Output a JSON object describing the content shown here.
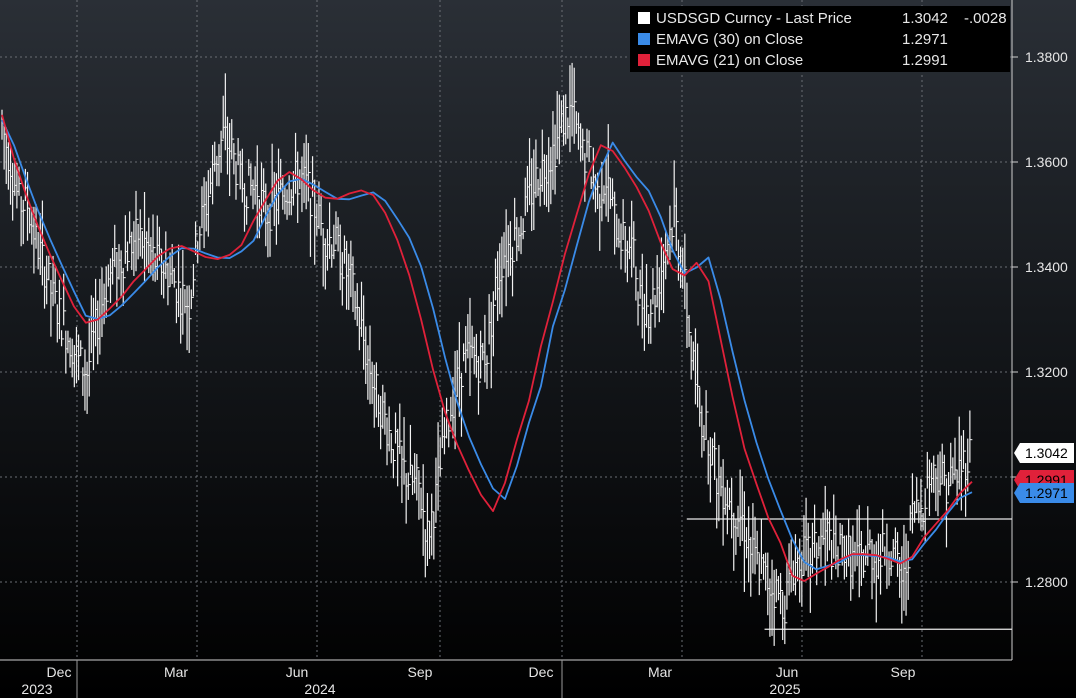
{
  "chart_data": {
    "type": "line",
    "title": "",
    "xlabel": "",
    "ylabel": "",
    "ylim": [
      1.2655,
      1.3905
    ],
    "yticks": [
      "1.2800",
      "1.3000",
      "1.3200",
      "1.3400",
      "1.3600",
      "1.3800"
    ],
    "y_major_values": [
      1.28,
      1.3,
      1.32,
      1.34,
      1.36,
      1.38
    ],
    "months": [
      "Dec",
      "Mar",
      "Jun",
      "Sep",
      "Dec",
      "Mar",
      "Jun",
      "Sep"
    ],
    "years": [
      "2023",
      "2024",
      "2025"
    ],
    "legend_position": "top-right",
    "grid": true,
    "series": [
      {
        "name": "USDSGD Curncy - Last Price",
        "style": "price-bars",
        "last": "1.3042",
        "change": "-.0028",
        "label": "1.3042",
        "color": "#ffffff",
        "label_bg": "#ffffff",
        "label_color": "#000000",
        "values": [
          1.367,
          1.36,
          1.352,
          1.352,
          1.345,
          1.34,
          1.334,
          1.33,
          1.326,
          1.322,
          1.32,
          1.328,
          1.335,
          1.34,
          1.341,
          1.344,
          1.346,
          1.344,
          1.341,
          1.34,
          1.338,
          1.335,
          1.333,
          1.346,
          1.352,
          1.36,
          1.365,
          1.362,
          1.356,
          1.355,
          1.355,
          1.35,
          1.352,
          1.354,
          1.356,
          1.357,
          1.355,
          1.35,
          1.346,
          1.345,
          1.341,
          1.337,
          1.33,
          1.322,
          1.316,
          1.311,
          1.306,
          1.302,
          1.299,
          1.298,
          1.289,
          1.296,
          1.307,
          1.315,
          1.321,
          1.323,
          1.322,
          1.324,
          1.336,
          1.343,
          1.345,
          1.348,
          1.353,
          1.358,
          1.36,
          1.363,
          1.368,
          1.37,
          1.362,
          1.36,
          1.354,
          1.357,
          1.349,
          1.345,
          1.344,
          1.334,
          1.332,
          1.336,
          1.344,
          1.35,
          1.34,
          1.324,
          1.312,
          1.308,
          1.3,
          1.297,
          1.294,
          1.292,
          1.286,
          1.283,
          1.28,
          1.278,
          1.276,
          1.283,
          1.285,
          1.285,
          1.287,
          1.289,
          1.284,
          1.287,
          1.284,
          1.284,
          1.286,
          1.284,
          1.287,
          1.284,
          1.28,
          1.293,
          1.294,
          1.3,
          1.301,
          1.299,
          1.3,
          1.303,
          1.305
        ]
      },
      {
        "name": "EMAVG (30)  on Close",
        "label": "1.2971",
        "color": "#3a8be8",
        "label_bg": "#3a8be8",
        "label_color": "#000000",
        "values": [
          1.368,
          1.3632,
          1.3568,
          1.3508,
          1.3454,
          1.3403,
          1.3354,
          1.3307,
          1.3301,
          1.3308,
          1.3327,
          1.335,
          1.3374,
          1.3399,
          1.342,
          1.3436,
          1.3435,
          1.3426,
          1.3418,
          1.3417,
          1.343,
          1.345,
          1.3496,
          1.3538,
          1.3563,
          1.3568,
          1.3557,
          1.3543,
          1.353,
          1.3529,
          1.3536,
          1.3542,
          1.3526,
          1.3492,
          1.3456,
          1.3401,
          1.3321,
          1.3227,
          1.3143,
          1.3077,
          1.3024,
          1.2978,
          1.2958,
          1.3021,
          1.3103,
          1.3173,
          1.3287,
          1.3356,
          1.3441,
          1.3524,
          1.3587,
          1.3637,
          1.3602,
          1.3571,
          1.3545,
          1.3496,
          1.3432,
          1.3388,
          1.3399,
          1.3418,
          1.3339,
          1.3239,
          1.3146,
          1.3066,
          1.2996,
          1.2937,
          1.2881,
          1.2838,
          1.2824,
          1.2831,
          1.2838,
          1.2852,
          1.2851,
          1.2849,
          1.2847,
          1.2839,
          1.2843,
          1.2873,
          1.29,
          1.2932,
          1.296,
          1.2971
        ]
      },
      {
        "name": "EMAVG (21)  on Close",
        "label": "1.2991",
        "color": "#e0213a",
        "label_bg": "#e0213a",
        "label_color": "#000000",
        "values": [
          1.369,
          1.3606,
          1.3538,
          1.3478,
          1.3424,
          1.3374,
          1.3325,
          1.3294,
          1.33,
          1.3321,
          1.3344,
          1.3373,
          1.3396,
          1.342,
          1.3435,
          1.344,
          1.343,
          1.3419,
          1.3415,
          1.3423,
          1.3442,
          1.3488,
          1.3527,
          1.3564,
          1.3581,
          1.3567,
          1.3546,
          1.3532,
          1.353,
          1.354,
          1.3546,
          1.3537,
          1.3503,
          1.3452,
          1.3385,
          1.33,
          1.3204,
          1.3123,
          1.3062,
          1.3012,
          1.2966,
          1.2935,
          1.2989,
          1.3071,
          1.3145,
          1.3249,
          1.3334,
          1.3424,
          1.3501,
          1.3577,
          1.3632,
          1.3621,
          1.3589,
          1.3552,
          1.3507,
          1.3447,
          1.3396,
          1.3384,
          1.3408,
          1.3373,
          1.3263,
          1.3153,
          1.3054,
          1.2987,
          1.2922,
          1.2875,
          1.2812,
          1.2802,
          1.2816,
          1.2829,
          1.2843,
          1.2853,
          1.2853,
          1.2851,
          1.2844,
          1.2835,
          1.2848,
          1.2885,
          1.2911,
          1.2937,
          1.2969,
          1.2991
        ]
      }
    ],
    "hlines": [
      {
        "y": 1.292,
        "x_from": 0.678,
        "x_to": 1.0
      },
      {
        "y": 1.271,
        "x_from": 0.755,
        "x_to": 1.0
      }
    ]
  }
}
